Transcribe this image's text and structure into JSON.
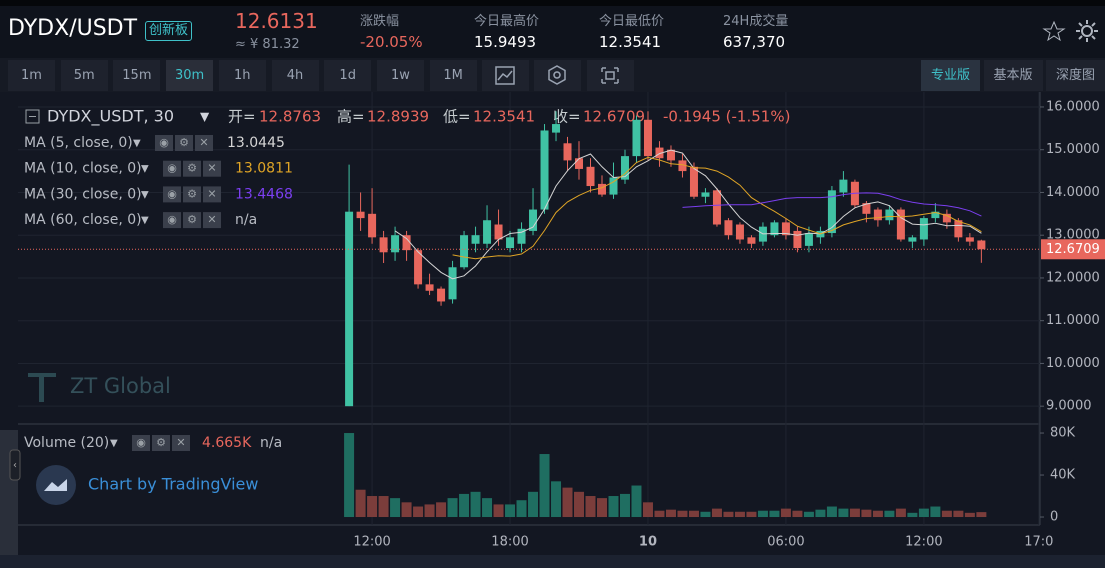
{
  "header": {
    "symbol": "DYDX/USDT",
    "tag": "创新板",
    "price": "12.6131",
    "price_cny": "≈ ¥ 81.32",
    "stats": [
      {
        "label": "涨跌幅",
        "value": "-20.05%"
      },
      {
        "label": "今日最高价",
        "value": "15.9493"
      },
      {
        "label": "今日最低价",
        "value": "12.3541"
      },
      {
        "label": "24H成交量",
        "value": "637,370"
      }
    ]
  },
  "toolbar": {
    "intervals": [
      "1m",
      "5m",
      "15m",
      "30m",
      "1h",
      "4h",
      "1d",
      "1w",
      "1M"
    ],
    "selected": "30m",
    "views": [
      "专业版",
      "基本版",
      "深度图"
    ],
    "selected_view": "专业版"
  },
  "chart_data": {
    "type": "candlestick",
    "up_color": "#40c2a4",
    "down_color": "#e8675d",
    "legend": {
      "symbol": "DYDX_USDT, 30",
      "open_label": "开=",
      "high_label": "高=",
      "low_label": "低=",
      "close_label": "收=",
      "change": "-0.1945 (-1.51%)"
    },
    "watermarks": [
      "ZT Global",
      "Chart by TradingView"
    ],
    "xlim": [
      -28.8,
      60.1
    ],
    "xticks": [
      {
        "value": 2,
        "label": "12:00"
      },
      {
        "value": 14,
        "label": "18:00"
      },
      {
        "value": 26,
        "label": "10"
      },
      {
        "value": 38,
        "label": "06:00"
      },
      {
        "value": 50,
        "label": "12:00"
      },
      {
        "value": 60,
        "label": "17:0"
      }
    ],
    "ylim": [
      8.63,
      16.35
    ],
    "yticks": [
      {
        "value": 9,
        "label": "9.0000"
      },
      {
        "value": 10,
        "label": "10.0000"
      },
      {
        "value": 11,
        "label": "11.0000"
      },
      {
        "value": 12,
        "label": "12.0000"
      },
      {
        "value": 13,
        "label": "13.0000"
      },
      {
        "value": 14,
        "label": "14.0000"
      },
      {
        "value": 15,
        "label": "15.0000"
      },
      {
        "value": 16,
        "label": "16.0000"
      }
    ],
    "candles": {
      "open": [
        9.0,
        13.55,
        13.5,
        12.95,
        12.6,
        13.0,
        12.65,
        11.85,
        11.75,
        11.5,
        12.25,
        12.8,
        12.8,
        13.25,
        12.7,
        12.8,
        13.1,
        13.6,
        15.4,
        15.15,
        14.8,
        14.6,
        14.2,
        13.95,
        14.3,
        14.85,
        15.7,
        15.05,
        15.0,
        14.75,
        14.6,
        13.9,
        14.05,
        13.35,
        13.25,
        12.95,
        12.85,
        13.0,
        13.3,
        13.1,
        12.75,
        12.95,
        13.05,
        14.0,
        14.25,
        13.75,
        13.6,
        13.35,
        13.6,
        12.85,
        12.9,
        13.4,
        13.5,
        13.35,
        12.95,
        12.8763
      ],
      "high": [
        14.65,
        14.0,
        14.1,
        13.1,
        13.2,
        13.1,
        12.7,
        12.1,
        11.8,
        12.4,
        13.1,
        13.2,
        13.7,
        13.6,
        13.1,
        13.3,
        14.1,
        15.6,
        15.9,
        15.3,
        15.2,
        14.8,
        14.4,
        14.7,
        15.0,
        15.8,
        15.9,
        15.2,
        15.1,
        14.9,
        14.7,
        14.1,
        14.1,
        13.4,
        13.3,
        13.0,
        13.3,
        13.35,
        13.4,
        13.2,
        13.2,
        13.2,
        14.15,
        14.5,
        14.3,
        13.8,
        13.65,
        13.7,
        13.65,
        13.0,
        13.45,
        13.75,
        13.6,
        13.4,
        13.05,
        12.8939
      ],
      "low": [
        9.0,
        13.1,
        12.8,
        12.35,
        12.4,
        12.4,
        11.75,
        11.6,
        11.35,
        11.4,
        12.2,
        12.6,
        12.7,
        12.75,
        12.6,
        12.6,
        13.0,
        13.5,
        15.2,
        14.5,
        14.3,
        14.0,
        13.9,
        13.85,
        14.2,
        14.7,
        14.75,
        14.6,
        14.6,
        14.35,
        13.85,
        13.75,
        13.2,
        12.9,
        12.8,
        12.7,
        12.75,
        12.95,
        12.9,
        12.6,
        12.6,
        12.8,
        12.95,
        13.9,
        13.65,
        13.3,
        13.2,
        13.25,
        12.85,
        12.7,
        12.75,
        13.3,
        13.15,
        12.85,
        12.75,
        12.3541
      ],
      "close": [
        13.55,
        13.4,
        12.95,
        12.6,
        13.0,
        12.65,
        11.85,
        11.7,
        11.45,
        12.25,
        13.0,
        13.0,
        13.35,
        12.9,
        12.95,
        13.15,
        13.6,
        15.45,
        15.6,
        14.75,
        14.55,
        14.15,
        13.95,
        14.35,
        14.85,
        15.7,
        14.85,
        14.8,
        14.75,
        14.5,
        13.9,
        14.0,
        13.25,
        13.0,
        12.9,
        12.8,
        13.2,
        13.3,
        13.0,
        12.7,
        13.05,
        13.1,
        14.05,
        14.3,
        13.7,
        13.5,
        13.35,
        13.6,
        12.9,
        12.95,
        13.4,
        13.55,
        13.3,
        12.95,
        12.85,
        12.6709
      ]
    },
    "series": [
      {
        "name": "MA (5, close, 0)",
        "color": "#d4d4d4",
        "values": [
          null,
          null,
          null,
          null,
          13.1,
          12.92,
          12.61,
          12.36,
          12.13,
          11.98,
          12.05,
          12.28,
          12.61,
          12.9,
          13.04,
          13.07,
          13.19,
          13.61,
          14.15,
          14.51,
          14.79,
          14.9,
          14.6,
          14.35,
          14.37,
          14.6,
          14.74,
          14.91,
          14.99,
          14.92,
          14.56,
          14.39,
          14.08,
          13.73,
          13.41,
          13.19,
          13.03,
          13.04,
          13.04,
          13.0,
          13.05,
          13.03,
          13.18,
          13.44,
          13.64,
          13.73,
          13.78,
          13.69,
          13.41,
          13.26,
          13.24,
          13.28,
          13.22,
          13.23,
          13.21,
          13.0445
        ]
      },
      {
        "name": "MA (10, close, 0)",
        "color": "#e0a526",
        "values": [
          null,
          null,
          null,
          null,
          null,
          null,
          null,
          null,
          null,
          12.54,
          12.49,
          12.45,
          12.49,
          12.52,
          12.51,
          12.56,
          12.74,
          13.11,
          13.53,
          13.78,
          13.93,
          14.05,
          14.11,
          14.25,
          14.44,
          14.7,
          14.82,
          14.76,
          14.67,
          14.65,
          14.58,
          14.57,
          14.5,
          14.36,
          14.17,
          13.88,
          13.71,
          13.56,
          13.39,
          13.21,
          13.12,
          13.03,
          13.11,
          13.24,
          13.32,
          13.39,
          13.41,
          13.44,
          13.43,
          13.45,
          13.49,
          13.53,
          13.46,
          13.32,
          13.24,
          13.0811
        ]
      },
      {
        "name": "MA (30, close, 0)",
        "color": "#7b3ff0",
        "values": [
          null,
          null,
          null,
          null,
          null,
          null,
          null,
          null,
          null,
          null,
          null,
          null,
          null,
          null,
          null,
          null,
          null,
          null,
          null,
          null,
          null,
          null,
          null,
          null,
          null,
          null,
          null,
          null,
          null,
          13.65,
          13.67,
          13.69,
          13.7,
          13.71,
          13.71,
          13.71,
          13.76,
          13.81,
          13.86,
          13.88,
          13.88,
          13.88,
          13.9,
          13.95,
          13.98,
          13.99,
          13.98,
          13.92,
          13.83,
          13.77,
          13.73,
          13.71,
          13.69,
          13.64,
          13.57,
          13.4468
        ]
      },
      {
        "name": "MA (60, close, 0)",
        "color": "#9aa0a6",
        "legend_value": "n/a"
      }
    ],
    "volume": {
      "name": "Volume (20)",
      "legend_values": [
        "4.665K",
        "n/a"
      ],
      "up_color": "#1f6e61",
      "down_color": "#7b3d3b",
      "ylim": [
        -7600,
        86700
      ],
      "yticks": [
        0,
        {
          "value": 40000,
          "label": "40K"
        },
        {
          "value": 80000,
          "label": "80K"
        }
      ],
      "values": [
        80000,
        26000,
        20000,
        20000,
        18000,
        14000,
        10000,
        12000,
        14000,
        18000,
        22000,
        24000,
        18000,
        12000,
        12000,
        16000,
        24000,
        60000,
        34000,
        28000,
        24000,
        20000,
        18000,
        20000,
        22000,
        30000,
        14000,
        6000,
        7000,
        6000,
        6000,
        5000,
        8000,
        5000,
        5000,
        5000,
        6000,
        6000,
        8000,
        6000,
        5000,
        7000,
        10000,
        8000,
        8000,
        7000,
        6000,
        6000,
        8000,
        4000,
        8000,
        10000,
        6000,
        6000,
        4000,
        4665
      ]
    }
  }
}
